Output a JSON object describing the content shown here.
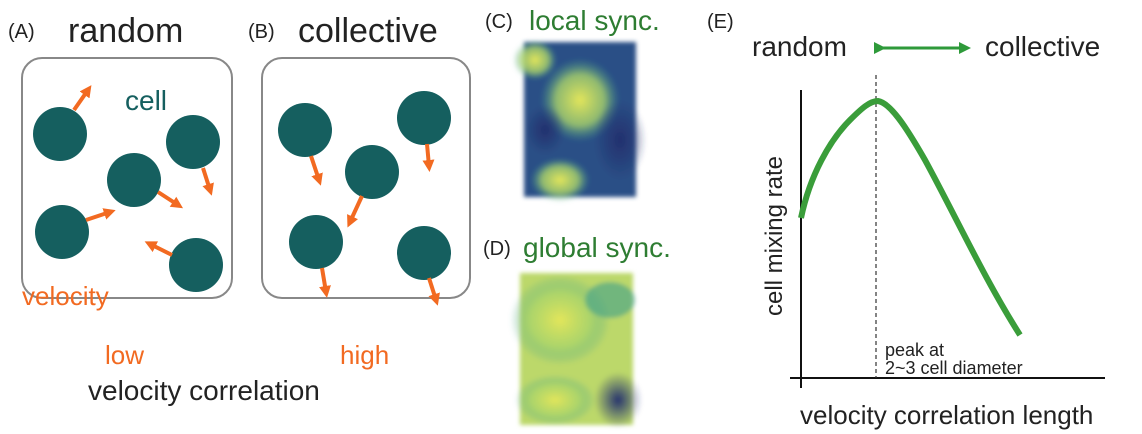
{
  "panel_a": {
    "label": "(A)",
    "title": "random",
    "cell_label": "cell",
    "velocity_label": "velocity"
  },
  "panel_b": {
    "label": "(B)",
    "title": "collective"
  },
  "correlation": {
    "low": "low",
    "high": "high",
    "axis": "velocity correlation"
  },
  "panel_c": {
    "label": "(C)",
    "title": "local sync."
  },
  "panel_d": {
    "label": "(D)",
    "title": "global sync."
  },
  "panel_e": {
    "label": "(E)",
    "left": "random",
    "right": "collective",
    "y_label": "cell mixing rate",
    "x_label": "velocity correlation length",
    "peak_line1": "peak at",
    "peak_line2": "2~3 cell diameter"
  }
}
